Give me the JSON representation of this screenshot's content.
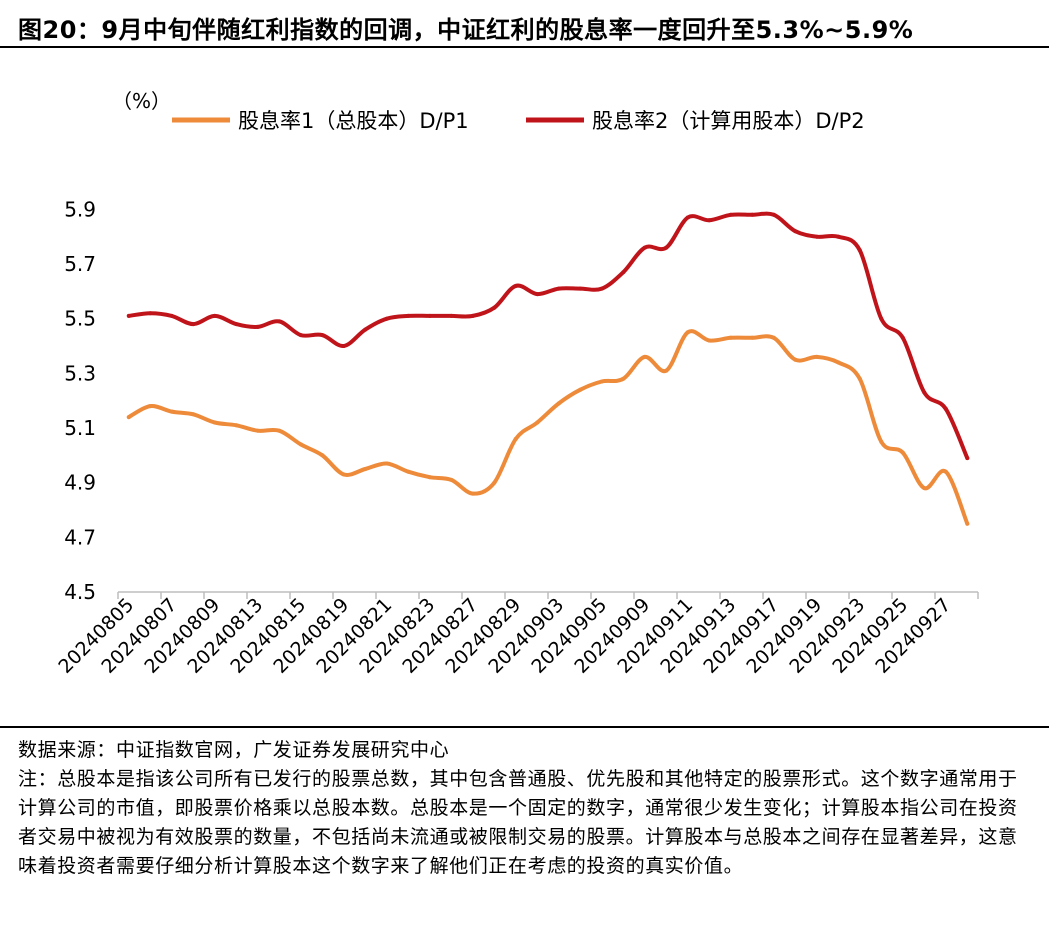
{
  "header": {
    "title": "图20：9月中旬伴随红利指数的回调，中证红利的股息率一度回升至5.3%~5.9%"
  },
  "chart_data": {
    "type": "line",
    "unit_label": "（%）",
    "ylim": [
      4.5,
      6.0
    ],
    "yticks": [
      "4.5",
      "4.7",
      "4.9",
      "5.1",
      "5.3",
      "5.5",
      "5.7",
      "5.9"
    ],
    "x_tick_labels": [
      "20240805",
      "20240807",
      "20240809",
      "20240813",
      "20240815",
      "20240819",
      "20240821",
      "20240823",
      "20240827",
      "20240829",
      "20240903",
      "20240905",
      "20240909",
      "20240911",
      "20240913",
      "20240917",
      "20240919",
      "20240923",
      "20240925",
      "20240927"
    ],
    "legend_position": "top",
    "series": [
      {
        "name": "股息率1（总股本）D/P1",
        "color": "#ED8B3A",
        "values": [
          5.14,
          5.18,
          5.16,
          5.15,
          5.12,
          5.11,
          5.09,
          5.09,
          5.04,
          5.0,
          4.93,
          4.95,
          4.97,
          4.94,
          4.92,
          4.91,
          4.86,
          4.9,
          5.06,
          5.12,
          5.19,
          5.24,
          5.27,
          5.28,
          5.36,
          5.31,
          5.45,
          5.42,
          5.43,
          5.43,
          5.43,
          5.35,
          5.36,
          5.34,
          5.28,
          5.05,
          5.01,
          4.88,
          4.94,
          4.75
        ]
      },
      {
        "name": "股息率2（计算用股本）D/P2",
        "color": "#C0141B",
        "values": [
          5.51,
          5.52,
          5.51,
          5.48,
          5.51,
          5.48,
          5.47,
          5.49,
          5.44,
          5.44,
          5.4,
          5.46,
          5.5,
          5.51,
          5.51,
          5.51,
          5.51,
          5.54,
          5.62,
          5.59,
          5.61,
          5.61,
          5.61,
          5.67,
          5.76,
          5.76,
          5.87,
          5.86,
          5.88,
          5.88,
          5.88,
          5.82,
          5.8,
          5.8,
          5.75,
          5.5,
          5.43,
          5.23,
          5.17,
          4.99
        ]
      }
    ]
  },
  "footer": {
    "source": "数据来源：中证指数官网，广发证券发展研究中心",
    "note": "注：总股本是指该公司所有已发行的股票总数，其中包含普通股、优先股和其他特定的股票形式。这个数字通常用于计算公司的市值，即股票价格乘以总股本数。总股本是一个固定的数字，通常很少发生变化；计算股本指公司在投资者交易中被视为有效股票的数量，不包括尚未流通或被限制交易的股票。计算股本与总股本之间存在显著差异，这意味着投资者需要仔细分析计算股本这个数字来了解他们正在考虑的投资的真实价值。"
  }
}
